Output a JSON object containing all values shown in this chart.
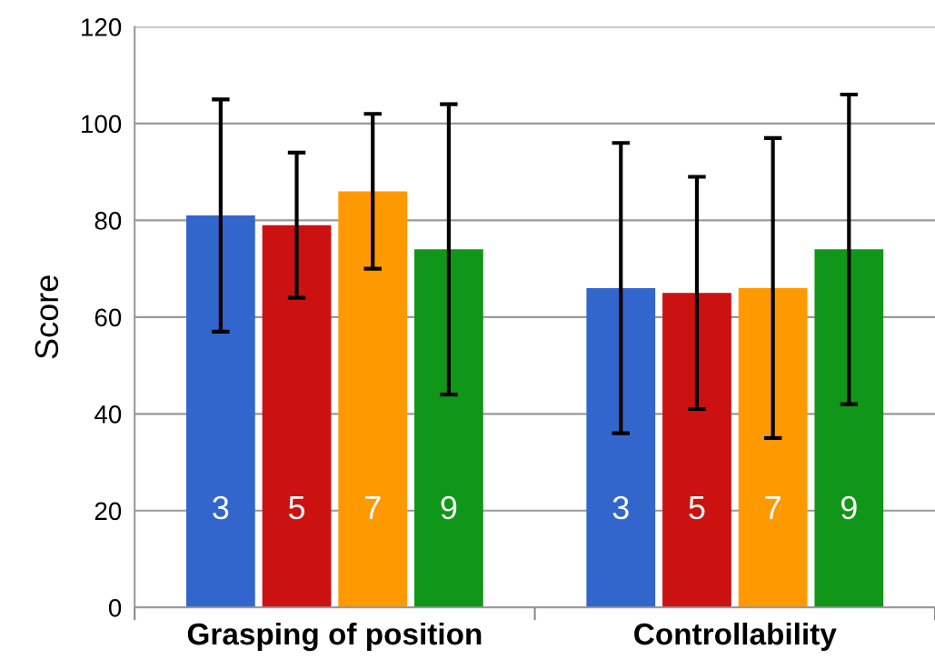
{
  "chart_data": {
    "type": "bar",
    "ylabel": "Score",
    "categories": [
      "Grasping of position",
      "Controllability"
    ],
    "series": [
      {
        "name": "3",
        "color": "#3366cc",
        "values": [
          81,
          66
        ],
        "errors": [
          24,
          30
        ]
      },
      {
        "name": "5",
        "color": "#cc1111",
        "values": [
          79,
          65
        ],
        "errors": [
          15,
          24
        ]
      },
      {
        "name": "7",
        "color": "#ff9900",
        "values": [
          86,
          66
        ],
        "errors": [
          16,
          31
        ]
      },
      {
        "name": "9",
        "color": "#109618",
        "values": [
          74,
          74
        ],
        "errors": [
          30,
          32
        ]
      }
    ],
    "ylim": [
      0,
      120
    ],
    "yticks": [
      0,
      20,
      40,
      60,
      80,
      100,
      120
    ],
    "grid": "y",
    "legend": false
  }
}
